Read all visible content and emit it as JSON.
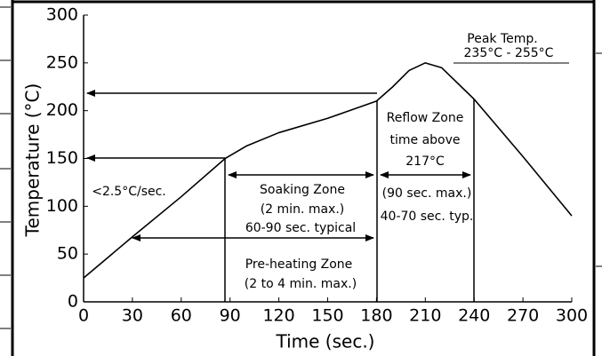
{
  "chart_data": {
    "type": "line",
    "xlabel": "Time (sec.)",
    "ylabel": "Temperature (°C)",
    "x": [
      0,
      30,
      60,
      87,
      100,
      120,
      150,
      180,
      190,
      200,
      210,
      220,
      240,
      270,
      300
    ],
    "series": [
      {
        "color": "#000000",
        "values": [
          25,
          68,
          110,
          150,
          163,
          177,
          192,
          210,
          225,
          242,
          250,
          245,
          212,
          152,
          90
        ]
      }
    ],
    "xlim": [
      0,
      300
    ],
    "xticks": [
      0,
      30,
      60,
      90,
      120,
      150,
      180,
      210,
      240,
      270,
      300
    ],
    "ylim": [
      0,
      300
    ],
    "yticks": [
      0,
      50,
      100,
      150,
      200,
      250,
      300
    ],
    "grid": false,
    "annotations": [
      "Peak Temp.",
      "235°C - 255°C",
      "Reflow Zone",
      "time above",
      "217°C",
      "(90 sec. max.)",
      "40-70 sec. typ.",
      "<2.5°C/sec.",
      "Soaking Zone",
      "(2 min. max.)",
      "60-90 sec. typical",
      "Pre-heating Zone",
      "(2 to 4 min. max.)"
    ]
  }
}
